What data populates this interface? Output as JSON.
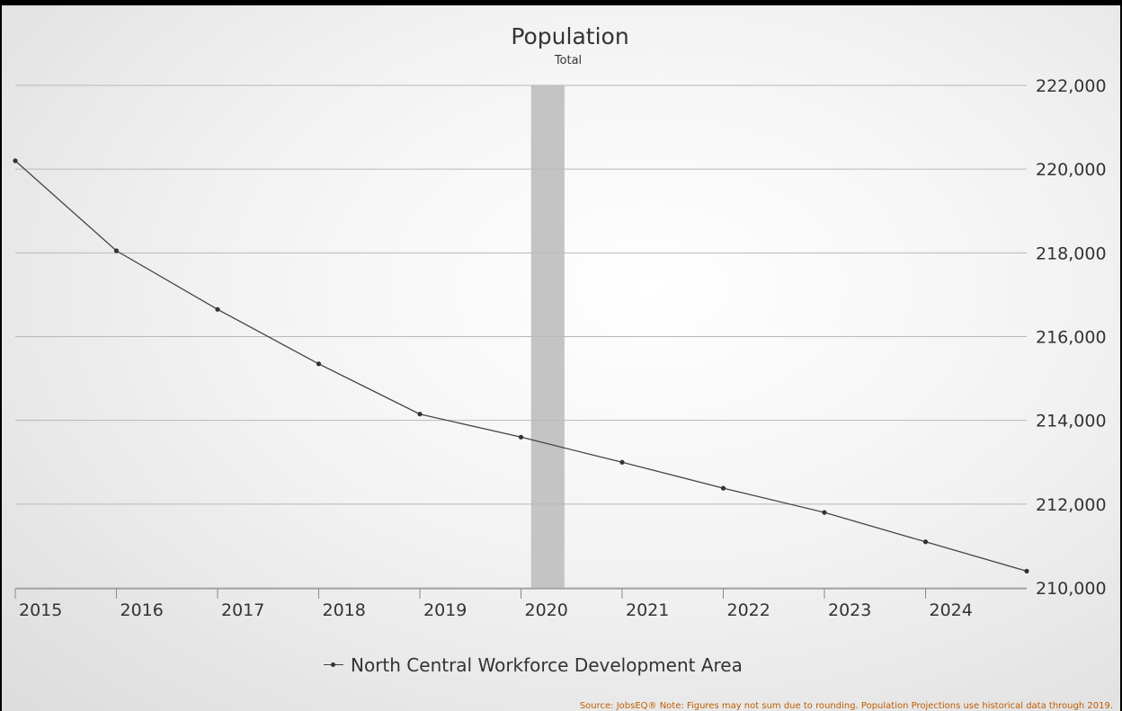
{
  "chart_data": {
    "type": "line",
    "title": "Population",
    "subtitle": "Total",
    "categories": [
      "2015",
      "2016",
      "2017",
      "2018",
      "2019",
      "2020",
      "2021",
      "2022",
      "2023",
      "2024"
    ],
    "x_tick_labels": [
      "2015",
      "2016",
      "2017",
      "2018",
      "2019",
      "2020",
      "2021",
      "2022",
      "2023",
      "2024"
    ],
    "series": [
      {
        "name": "North Central Workforce Development Area",
        "color": "#444444",
        "x": [
          2015,
          2016,
          2017,
          2018,
          2019,
          2020,
          2021,
          2022,
          2023,
          2024,
          2025
        ],
        "values": [
          220200,
          218050,
          216650,
          215350,
          214150,
          213600,
          213000,
          212380,
          211800,
          211100,
          210400
        ]
      }
    ],
    "ylim": [
      210000,
      222000
    ],
    "y_ticks": [
      210000,
      212000,
      214000,
      216000,
      218000,
      220000,
      222000
    ],
    "y_tick_labels": [
      "210,000",
      "212,000",
      "214,000",
      "216,000",
      "218,000",
      "220,000",
      "222,000"
    ],
    "y_axis_side": "right",
    "highlight_band": {
      "x_start": 2020.1,
      "x_end": 2020.43,
      "color": "#c4c4c4"
    },
    "grid": true,
    "legend": "bottom-center",
    "source_note": "Source: JobsEQ® Note: Figures may not sum due to rounding. Population Projections use historical data through 2019."
  }
}
